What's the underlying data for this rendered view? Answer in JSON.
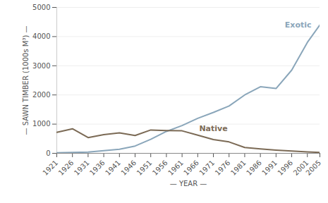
{
  "chart_data": {
    "type": "line",
    "x_label": "— YEAR —",
    "y_label": "— SAWN TIMBER (1000s M³) —",
    "x": [
      1921,
      1926,
      1931,
      1936,
      1941,
      1946,
      1951,
      1956,
      1961,
      1966,
      1971,
      1976,
      1981,
      1986,
      1991,
      1996,
      2001,
      2005
    ],
    "series": [
      {
        "name": "Exotic",
        "color": "#8aa6ba",
        "values": [
          20,
          30,
          40,
          90,
          140,
          250,
          480,
          750,
          950,
          1200,
          1400,
          1620,
          2000,
          2280,
          2220,
          2850,
          3800,
          4400
        ]
      },
      {
        "name": "Native",
        "color": "#7b6a55",
        "values": [
          720,
          840,
          540,
          640,
          700,
          610,
          800,
          780,
          770,
          620,
          470,
          390,
          200,
          150,
          110,
          80,
          50,
          30
        ]
      }
    ],
    "xlim": [
      1921,
      2005
    ],
    "xticks": [
      1921,
      1926,
      1931,
      1936,
      1941,
      1946,
      1951,
      1956,
      1961,
      1966,
      1971,
      1976,
      1981,
      1986,
      1991,
      1996,
      2001,
      2005
    ],
    "ylim": [
      0,
      5000
    ],
    "yticks": [
      0,
      1000,
      2000,
      3000,
      4000,
      5000
    ],
    "grid": true
  }
}
